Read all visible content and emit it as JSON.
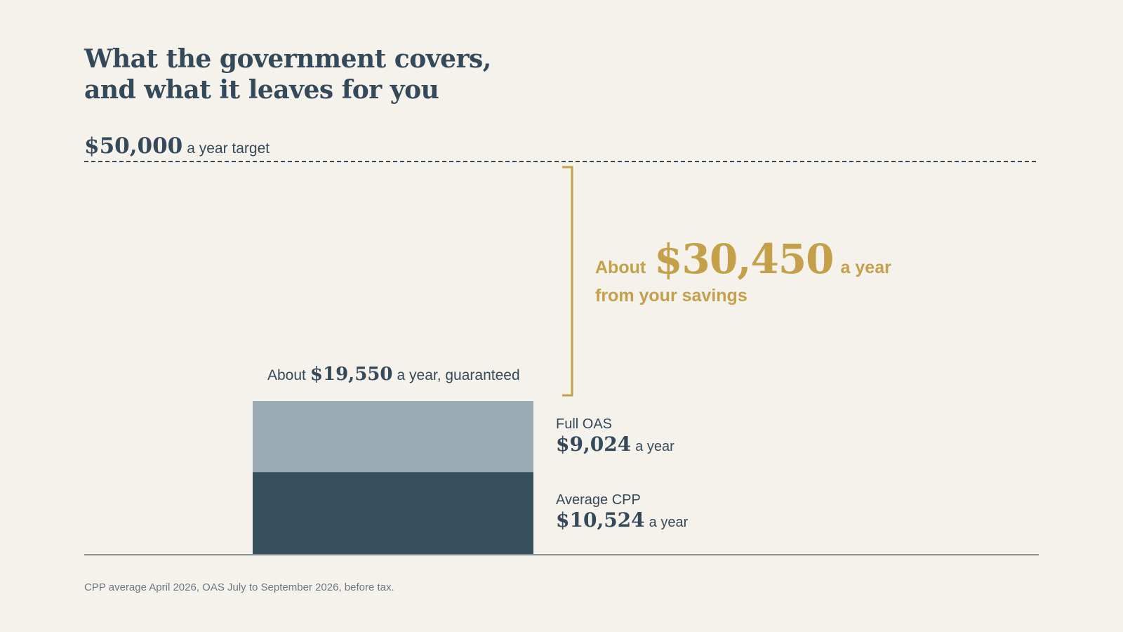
{
  "colors": {
    "background": "#f5f2ec",
    "text": "#34495a",
    "cpp": "#37505d",
    "oas": "#9aabb3",
    "gap": "#c4a04a",
    "baseline": "#8a9399",
    "footnote": "#6b7780"
  },
  "title": {
    "line1": "What the government covers,",
    "line2": "and what it leaves for you"
  },
  "target": {
    "amount": "$50,000",
    "unit": "a year target"
  },
  "guaranteed": {
    "prefix": "About",
    "amount": "$19,550",
    "suffix": "a year, guaranteed"
  },
  "gap": {
    "prefix": "About",
    "amount": "$30,450",
    "suffix": "a year",
    "line2": "from your savings"
  },
  "segments": {
    "oas": {
      "name": "Full OAS",
      "amount": "$9,024",
      "unit": "a year"
    },
    "cpp": {
      "name": "Average CPP",
      "amount": "$10,524",
      "unit": "a year"
    }
  },
  "footnote": "CPP average April 2026, OAS July to September 2026, before tax.",
  "chart_data": {
    "type": "bar",
    "stacked": true,
    "categories": [
      ""
    ],
    "series": [
      {
        "name": "Average CPP",
        "values": [
          10524
        ]
      },
      {
        "name": "Full OAS",
        "values": [
          9024
        ]
      }
    ],
    "total_guaranteed": 19550,
    "target": 50000,
    "gap": 30450,
    "title": "What the government covers, and what it leaves for you",
    "xlabel": "",
    "ylabel": "",
    "ylim": [
      0,
      50000
    ],
    "grid": false
  }
}
